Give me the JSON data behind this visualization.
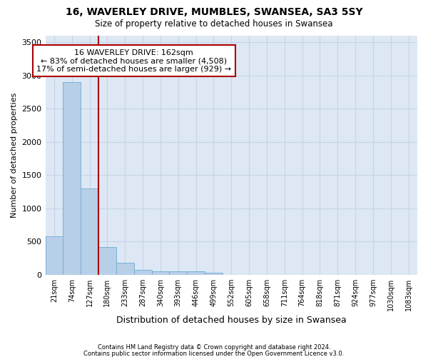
{
  "title1": "16, WAVERLEY DRIVE, MUMBLES, SWANSEA, SA3 5SY",
  "title2": "Size of property relative to detached houses in Swansea",
  "xlabel": "Distribution of detached houses by size in Swansea",
  "ylabel": "Number of detached properties",
  "bin_labels": [
    "21sqm",
    "74sqm",
    "127sqm",
    "180sqm",
    "233sqm",
    "287sqm",
    "340sqm",
    "393sqm",
    "446sqm",
    "499sqm",
    "552sqm",
    "605sqm",
    "658sqm",
    "711sqm",
    "764sqm",
    "818sqm",
    "871sqm",
    "924sqm",
    "977sqm",
    "1030sqm",
    "1083sqm"
  ],
  "bar_values": [
    580,
    2900,
    1300,
    420,
    180,
    75,
    50,
    50,
    55,
    30,
    0,
    0,
    0,
    0,
    0,
    0,
    0,
    0,
    0,
    0,
    0
  ],
  "bar_color": "#b8cfe8",
  "bar_edge_color": "#7aafd4",
  "grid_color": "#c8d4e8",
  "background_color": "#dde8f4",
  "property_label": "16 WAVERLEY DRIVE: 162sqm",
  "annotation_line1": "← 83% of detached houses are smaller (4,508)",
  "annotation_line2": "17% of semi-detached houses are larger (929) →",
  "vline_color": "#aa0000",
  "vline_x": 2.5,
  "ylim": [
    0,
    3600
  ],
  "yticks": [
    0,
    500,
    1000,
    1500,
    2000,
    2500,
    3000,
    3500
  ],
  "footer1": "Contains HM Land Registry data © Crown copyright and database right 2024.",
  "footer2": "Contains public sector information licensed under the Open Government Licence v3.0."
}
